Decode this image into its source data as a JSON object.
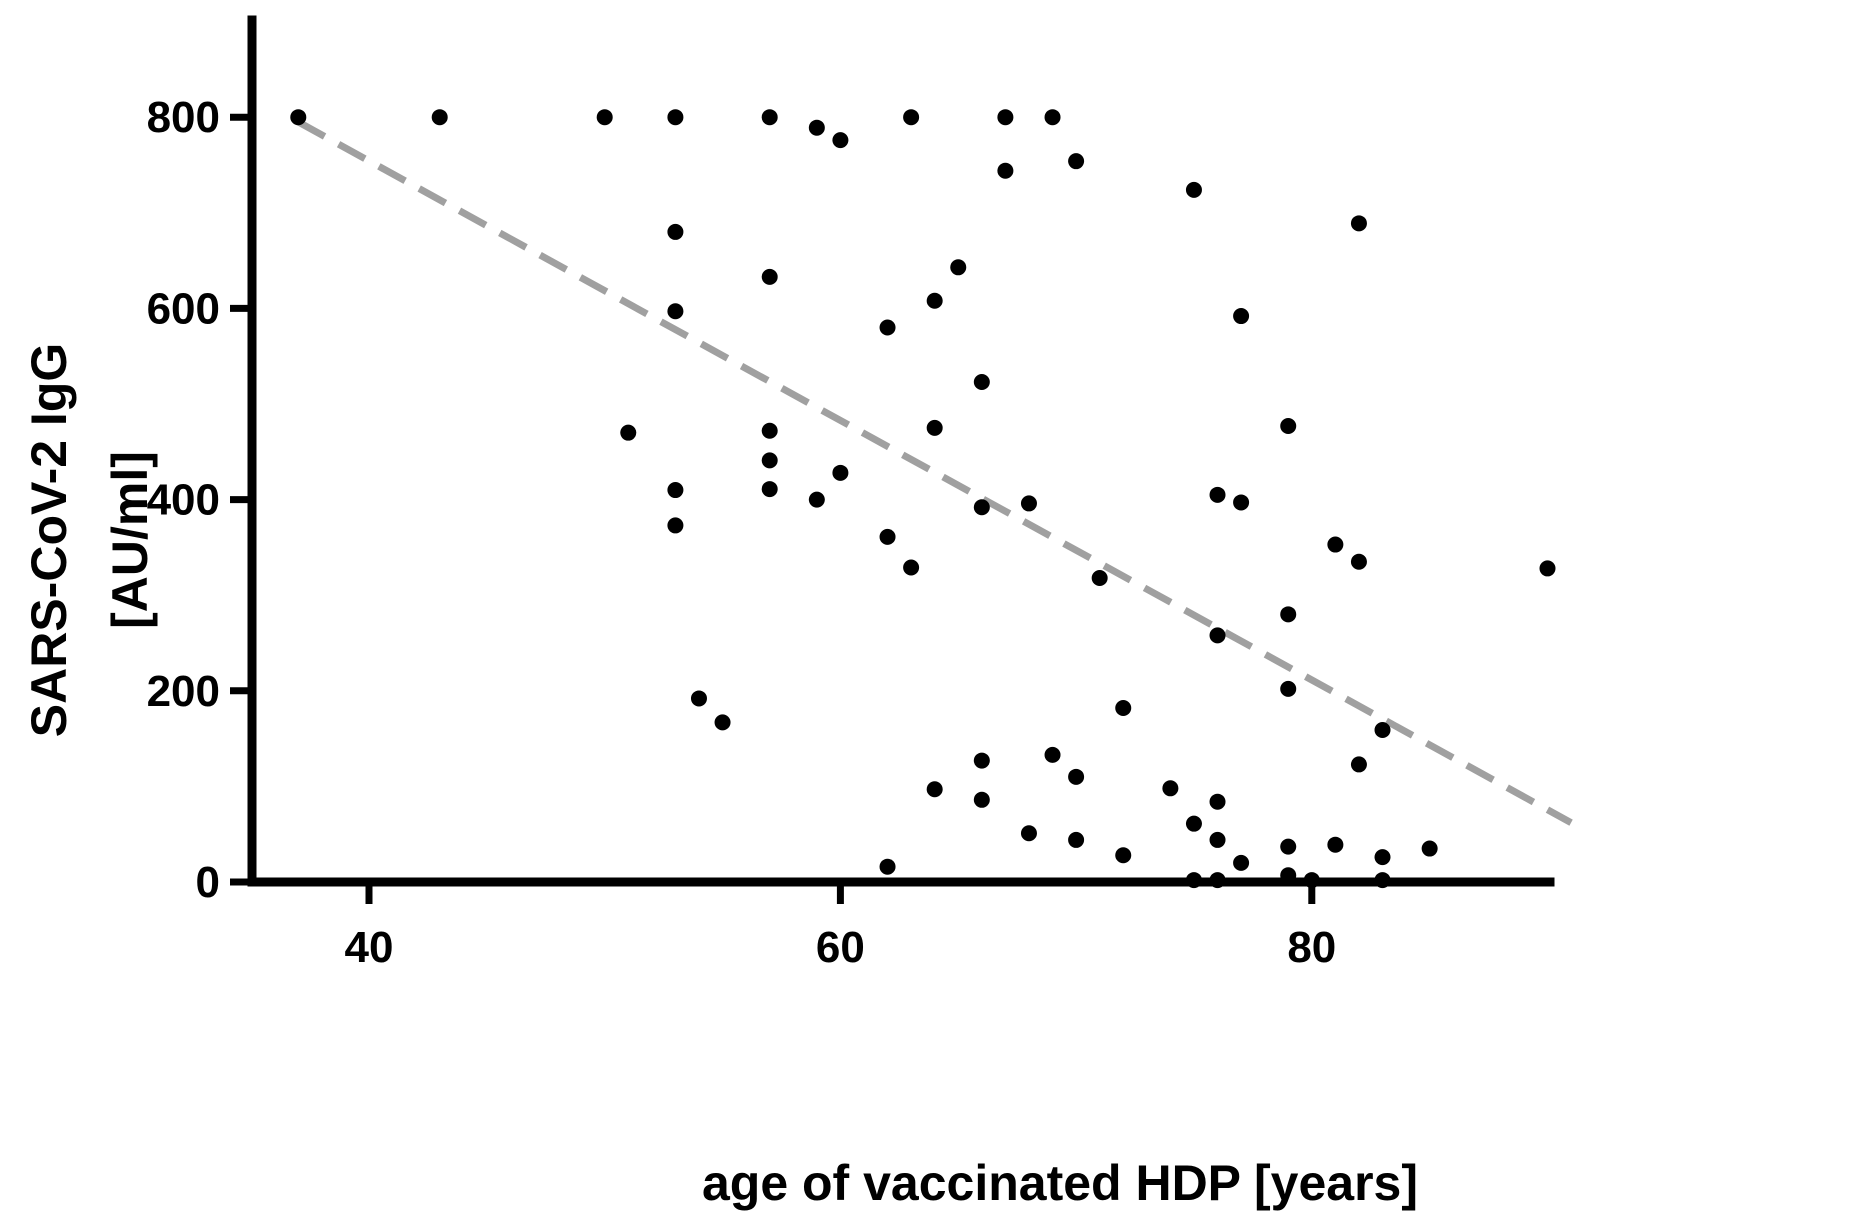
{
  "chart_data": {
    "type": "scatter",
    "xlabel": "age of vaccinated HDP [years]",
    "ylabel_lines": [
      "SARS-CoV-2 IgG",
      "[AU/ml]"
    ],
    "xlim": [
      35,
      91
    ],
    "ylim": [
      0,
      900
    ],
    "xticks": [
      40,
      60,
      80
    ],
    "yticks": [
      0,
      200,
      400,
      600,
      800
    ],
    "grid": false,
    "legend": "none",
    "marker_color": "#000000",
    "trendline": {
      "style": "dashed",
      "color": "#a0a0a0",
      "x": [
        37,
        91
      ],
      "y": [
        795,
        62
      ]
    },
    "points": [
      {
        "x": 37,
        "y": 800
      },
      {
        "x": 43,
        "y": 800
      },
      {
        "x": 50,
        "y": 800
      },
      {
        "x": 51,
        "y": 470
      },
      {
        "x": 53,
        "y": 800
      },
      {
        "x": 53,
        "y": 680
      },
      {
        "x": 53,
        "y": 597
      },
      {
        "x": 53,
        "y": 410
      },
      {
        "x": 53,
        "y": 373
      },
      {
        "x": 54,
        "y": 192
      },
      {
        "x": 55,
        "y": 167
      },
      {
        "x": 57,
        "y": 800
      },
      {
        "x": 57,
        "y": 633
      },
      {
        "x": 57,
        "y": 472
      },
      {
        "x": 57,
        "y": 441
      },
      {
        "x": 57,
        "y": 411
      },
      {
        "x": 59,
        "y": 789
      },
      {
        "x": 59,
        "y": 400
      },
      {
        "x": 60,
        "y": 776
      },
      {
        "x": 60,
        "y": 428
      },
      {
        "x": 62,
        "y": 580
      },
      {
        "x": 62,
        "y": 361
      },
      {
        "x": 62,
        "y": 16
      },
      {
        "x": 63,
        "y": 800
      },
      {
        "x": 63,
        "y": 329
      },
      {
        "x": 64,
        "y": 608
      },
      {
        "x": 64,
        "y": 475
      },
      {
        "x": 64,
        "y": 97
      },
      {
        "x": 65,
        "y": 643
      },
      {
        "x": 66,
        "y": 523
      },
      {
        "x": 66,
        "y": 392
      },
      {
        "x": 66,
        "y": 127
      },
      {
        "x": 66,
        "y": 86
      },
      {
        "x": 67,
        "y": 800
      },
      {
        "x": 67,
        "y": 744
      },
      {
        "x": 68,
        "y": 396
      },
      {
        "x": 68,
        "y": 51
      },
      {
        "x": 69,
        "y": 800
      },
      {
        "x": 69,
        "y": 133
      },
      {
        "x": 70,
        "y": 754
      },
      {
        "x": 70,
        "y": 110
      },
      {
        "x": 70,
        "y": 44
      },
      {
        "x": 71,
        "y": 318
      },
      {
        "x": 72,
        "y": 182
      },
      {
        "x": 72,
        "y": 28
      },
      {
        "x": 74,
        "y": 98
      },
      {
        "x": 75,
        "y": 724
      },
      {
        "x": 75,
        "y": 61
      },
      {
        "x": 75,
        "y": 2
      },
      {
        "x": 76,
        "y": 405
      },
      {
        "x": 76,
        "y": 258
      },
      {
        "x": 76,
        "y": 84
      },
      {
        "x": 76,
        "y": 44
      },
      {
        "x": 76,
        "y": 2
      },
      {
        "x": 77,
        "y": 592
      },
      {
        "x": 77,
        "y": 397
      },
      {
        "x": 77,
        "y": 20
      },
      {
        "x": 79,
        "y": 477
      },
      {
        "x": 79,
        "y": 280
      },
      {
        "x": 79,
        "y": 202
      },
      {
        "x": 79,
        "y": 37
      },
      {
        "x": 79,
        "y": 7
      },
      {
        "x": 80,
        "y": 2
      },
      {
        "x": 81,
        "y": 353
      },
      {
        "x": 81,
        "y": 39
      },
      {
        "x": 82,
        "y": 689
      },
      {
        "x": 82,
        "y": 335
      },
      {
        "x": 82,
        "y": 123
      },
      {
        "x": 83,
        "y": 159
      },
      {
        "x": 83,
        "y": 26
      },
      {
        "x": 83,
        "y": 2
      },
      {
        "x": 85,
        "y": 35
      },
      {
        "x": 90,
        "y": 328
      }
    ]
  }
}
